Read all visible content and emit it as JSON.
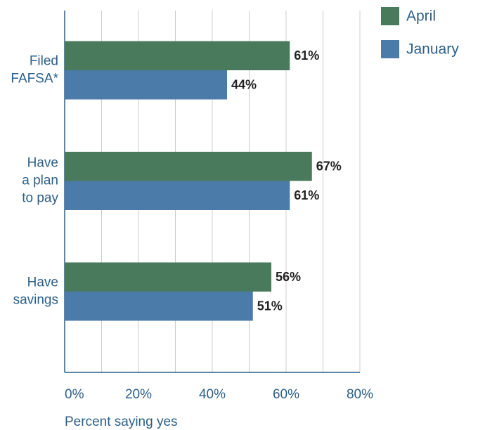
{
  "chart_data": {
    "type": "bar",
    "orientation": "horizontal",
    "categories": [
      [
        "Filed",
        "FAFSA*"
      ],
      [
        "Have",
        "a plan",
        "to pay"
      ],
      [
        "Have",
        "savings"
      ]
    ],
    "series": [
      {
        "name": "April",
        "color": "#4a7a5c",
        "values": [
          61,
          67,
          56
        ],
        "value_labels": [
          "61%",
          "67%",
          "56%"
        ]
      },
      {
        "name": "January",
        "color": "#4b7ba8",
        "values": [
          44,
          61,
          51
        ],
        "value_labels": [
          "44%",
          "61%",
          "51%"
        ]
      }
    ],
    "xlim": [
      0,
      80
    ],
    "xticks": [
      {
        "value": 0,
        "label": "0%"
      },
      {
        "value": 20,
        "label": "20%"
      },
      {
        "value": 40,
        "label": "40%"
      },
      {
        "value": 60,
        "label": "60%"
      },
      {
        "value": 80,
        "label": "80%"
      }
    ],
    "minor_xticks": [
      10,
      30,
      50,
      70
    ],
    "xlabel": "Percent saying yes",
    "grid": true,
    "legend": "top-right"
  }
}
